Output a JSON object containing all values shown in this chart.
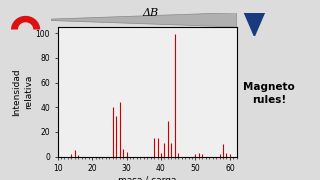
{
  "title": "ΔB",
  "xlabel": "masa / carga",
  "ylabel": "Intensidad\nrelativa",
  "xlim": [
    10,
    62
  ],
  "ylim": [
    0,
    105
  ],
  "yticks": [
    0,
    20,
    40,
    60,
    80,
    100
  ],
  "xticks": [
    10,
    20,
    30,
    40,
    50,
    60
  ],
  "background_color": "#dcdcdc",
  "ax_background": "#efefef",
  "bar_color": "#cc0000",
  "magneto_text": "Magneto\nrules!",
  "peaks": [
    [
      14,
      2
    ],
    [
      15,
      5
    ],
    [
      16,
      1
    ],
    [
      26,
      40
    ],
    [
      27,
      33
    ],
    [
      28,
      44
    ],
    [
      29,
      6
    ],
    [
      30,
      4
    ],
    [
      38,
      15
    ],
    [
      39,
      15
    ],
    [
      40,
      3
    ],
    [
      41,
      11
    ],
    [
      42,
      29
    ],
    [
      43,
      11
    ],
    [
      44,
      99
    ],
    [
      45,
      3
    ],
    [
      50,
      2
    ],
    [
      51,
      3
    ],
    [
      52,
      2
    ],
    [
      57,
      2
    ],
    [
      58,
      10
    ],
    [
      59,
      3
    ],
    [
      60,
      2
    ]
  ],
  "arrow_color": "#b0b0b0",
  "arrow_edge_color": "#888888",
  "triangle_color": "#1a3a80",
  "magnet_color": "#dd1111"
}
